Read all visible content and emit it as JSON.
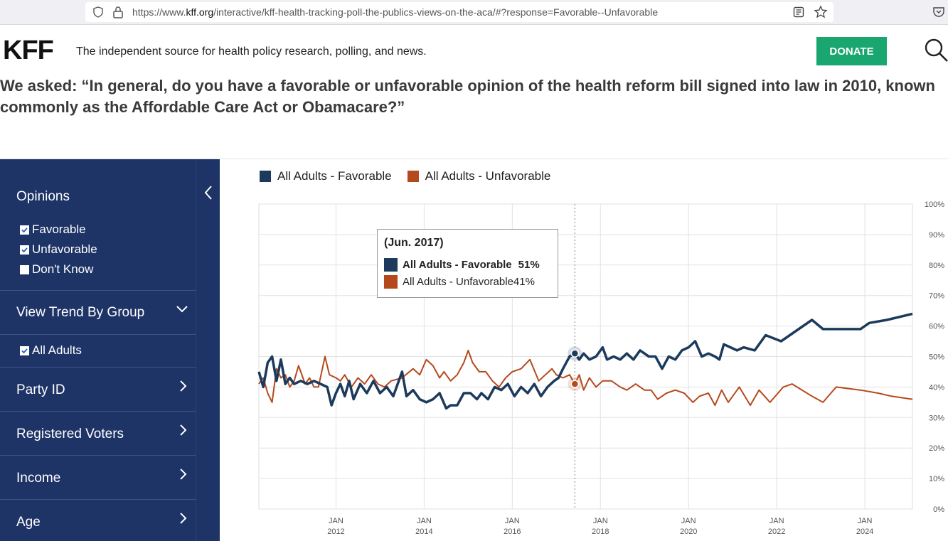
{
  "browser": {
    "url_prefix": "https://www.",
    "url_domain": "kff.org",
    "url_path": "/interactive/kff-health-tracking-poll-the-publics-views-on-the-aca/#?response=Favorable--Unfavorable"
  },
  "header": {
    "logo": "KFF",
    "tagline": "The independent source for health policy research, polling, and news.",
    "donate_label": "DONATE"
  },
  "question": "We asked: “In general, do you have a favorable or unfavorable opinion of the health reform bill signed into law in 2010, known commonly as the Affordable Care Act or Obamacare?”",
  "sidebar": {
    "opinions_title": "Opinions",
    "opinions": [
      {
        "label": "Favorable",
        "checked": true
      },
      {
        "label": "Unfavorable",
        "checked": true
      },
      {
        "label": "Don't Know",
        "checked": false
      }
    ],
    "view_trend_title": "View Trend By Group",
    "groups": [
      {
        "label": "All Adults",
        "checked": true
      }
    ],
    "sections": [
      "Party ID",
      "Registered Voters",
      "Income",
      "Age"
    ]
  },
  "colors": {
    "favorable": "#1b3a5c",
    "unfavorable": "#b5491e",
    "sidebar": "#1e3366",
    "donate": "#1aa66f"
  },
  "tooltip": {
    "date": "(Jun. 2017)",
    "fav_label": "All Adults - Favorable",
    "fav_value": "51%",
    "unfav_label": "All Adults - Unfavorable",
    "unfav_value": "41%"
  },
  "chart_data": {
    "type": "line",
    "legend": [
      "All Adults - Favorable",
      "All Adults - Unfavorable"
    ],
    "ylim": [
      0,
      100
    ],
    "y_ticks": [
      "100%",
      "90%",
      "80%",
      "70%",
      "60%",
      "50%",
      "40%",
      "30%",
      "20%",
      "10%",
      "0%"
    ],
    "x_ticks": [
      {
        "month": "JAN",
        "year": "2012",
        "x": 2012.0
      },
      {
        "month": "JAN",
        "year": "2014",
        "x": 2014.0
      },
      {
        "month": "JAN",
        "year": "2016",
        "x": 2016.0
      },
      {
        "month": "JAN",
        "year": "2018",
        "x": 2018.0
      },
      {
        "month": "JAN",
        "year": "2020",
        "x": 2020.0
      },
      {
        "month": "JAN",
        "year": "2022",
        "x": 2022.0
      },
      {
        "month": "JAN",
        "year": "2024",
        "x": 2024.0
      }
    ],
    "xlim": [
      2010.25,
      2025.08
    ],
    "highlight_x": 2017.42,
    "series": [
      {
        "name": "All Adults - Favorable",
        "points": [
          [
            2010.25,
            45
          ],
          [
            2010.35,
            40
          ],
          [
            2010.45,
            48
          ],
          [
            2010.55,
            50
          ],
          [
            2010.65,
            42
          ],
          [
            2010.75,
            49
          ],
          [
            2010.85,
            41
          ],
          [
            2010.95,
            43
          ],
          [
            2011.05,
            41
          ],
          [
            2011.2,
            42
          ],
          [
            2011.35,
            41
          ],
          [
            2011.5,
            42
          ],
          [
            2011.65,
            41
          ],
          [
            2011.8,
            40
          ],
          [
            2011.9,
            34
          ],
          [
            2012.0,
            38
          ],
          [
            2012.1,
            41
          ],
          [
            2012.2,
            37
          ],
          [
            2012.3,
            42
          ],
          [
            2012.4,
            36
          ],
          [
            2012.55,
            41
          ],
          [
            2012.7,
            38
          ],
          [
            2012.85,
            42
          ],
          [
            2013.0,
            38
          ],
          [
            2013.15,
            40
          ],
          [
            2013.3,
            37
          ],
          [
            2013.5,
            45
          ],
          [
            2013.6,
            37
          ],
          [
            2013.75,
            39
          ],
          [
            2013.9,
            36
          ],
          [
            2014.05,
            35
          ],
          [
            2014.2,
            36
          ],
          [
            2014.35,
            38
          ],
          [
            2014.5,
            33
          ],
          [
            2014.6,
            34
          ],
          [
            2014.75,
            34
          ],
          [
            2014.9,
            38
          ],
          [
            2015.05,
            38
          ],
          [
            2015.2,
            36
          ],
          [
            2015.3,
            38
          ],
          [
            2015.45,
            36
          ],
          [
            2015.6,
            40
          ],
          [
            2015.75,
            39
          ],
          [
            2015.9,
            41
          ],
          [
            2016.05,
            37
          ],
          [
            2016.2,
            40
          ],
          [
            2016.35,
            38
          ],
          [
            2016.5,
            41
          ],
          [
            2016.65,
            37
          ],
          [
            2016.8,
            40
          ],
          [
            2016.95,
            42
          ],
          [
            2017.05,
            43
          ],
          [
            2017.15,
            46
          ],
          [
            2017.3,
            50
          ],
          [
            2017.42,
            51
          ],
          [
            2017.52,
            49
          ],
          [
            2017.62,
            51
          ],
          [
            2017.75,
            49
          ],
          [
            2017.9,
            50
          ],
          [
            2018.05,
            53
          ],
          [
            2018.15,
            49
          ],
          [
            2018.3,
            50
          ],
          [
            2018.45,
            49
          ],
          [
            2018.6,
            51
          ],
          [
            2018.75,
            49
          ],
          [
            2018.9,
            52
          ],
          [
            2019.1,
            50
          ],
          [
            2019.25,
            50
          ],
          [
            2019.4,
            46
          ],
          [
            2019.55,
            50
          ],
          [
            2019.7,
            49
          ],
          [
            2019.85,
            52
          ],
          [
            2020.0,
            53
          ],
          [
            2020.15,
            55
          ],
          [
            2020.3,
            50
          ],
          [
            2020.45,
            51
          ],
          [
            2020.6,
            50
          ],
          [
            2020.7,
            49
          ],
          [
            2020.8,
            54
          ],
          [
            2020.95,
            53
          ],
          [
            2021.1,
            52
          ],
          [
            2021.25,
            53
          ],
          [
            2021.5,
            52
          ],
          [
            2021.75,
            57
          ],
          [
            2022.1,
            55
          ],
          [
            2022.8,
            62
          ],
          [
            2023.05,
            59
          ],
          [
            2023.5,
            59
          ],
          [
            2023.9,
            59
          ],
          [
            2024.1,
            61
          ],
          [
            2024.5,
            62
          ],
          [
            2025.08,
            64
          ]
        ]
      },
      {
        "name": "All Adults - Unfavorable",
        "points": [
          [
            2010.25,
            41
          ],
          [
            2010.35,
            43
          ],
          [
            2010.45,
            38
          ],
          [
            2010.55,
            35
          ],
          [
            2010.65,
            46
          ],
          [
            2010.75,
            43
          ],
          [
            2010.85,
            44
          ],
          [
            2010.95,
            40
          ],
          [
            2011.05,
            42
          ],
          [
            2011.15,
            47
          ],
          [
            2011.3,
            41
          ],
          [
            2011.4,
            43
          ],
          [
            2011.5,
            40
          ],
          [
            2011.6,
            40
          ],
          [
            2011.75,
            50
          ],
          [
            2011.85,
            44
          ],
          [
            2012.0,
            43
          ],
          [
            2012.1,
            42
          ],
          [
            2012.2,
            44
          ],
          [
            2012.35,
            40
          ],
          [
            2012.5,
            43
          ],
          [
            2012.65,
            41
          ],
          [
            2012.8,
            44
          ],
          [
            2012.95,
            41
          ],
          [
            2013.1,
            40
          ],
          [
            2013.25,
            42
          ],
          [
            2013.5,
            43
          ],
          [
            2013.75,
            46
          ],
          [
            2013.9,
            44
          ],
          [
            2014.05,
            49
          ],
          [
            2014.2,
            47
          ],
          [
            2014.35,
            43
          ],
          [
            2014.45,
            45
          ],
          [
            2014.6,
            42
          ],
          [
            2014.75,
            44
          ],
          [
            2014.9,
            48
          ],
          [
            2015.0,
            52
          ],
          [
            2015.1,
            48
          ],
          [
            2015.25,
            45
          ],
          [
            2015.4,
            45
          ],
          [
            2015.55,
            42
          ],
          [
            2015.7,
            40
          ],
          [
            2015.85,
            43
          ],
          [
            2016.0,
            45
          ],
          [
            2016.2,
            46
          ],
          [
            2016.4,
            49
          ],
          [
            2016.6,
            42
          ],
          [
            2016.75,
            44
          ],
          [
            2016.9,
            46
          ],
          [
            2017.0,
            44
          ],
          [
            2017.15,
            43
          ],
          [
            2017.3,
            44
          ],
          [
            2017.42,
            41
          ],
          [
            2017.52,
            44
          ],
          [
            2017.62,
            39
          ],
          [
            2017.75,
            43
          ],
          [
            2017.9,
            40
          ],
          [
            2018.05,
            42
          ],
          [
            2018.25,
            42
          ],
          [
            2018.45,
            40
          ],
          [
            2018.6,
            39
          ],
          [
            2018.8,
            41
          ],
          [
            2019.0,
            39
          ],
          [
            2019.15,
            39
          ],
          [
            2019.3,
            36
          ],
          [
            2019.5,
            38
          ],
          [
            2019.7,
            39
          ],
          [
            2019.9,
            38
          ],
          [
            2020.1,
            35
          ],
          [
            2020.25,
            37
          ],
          [
            2020.45,
            38
          ],
          [
            2020.6,
            34
          ],
          [
            2020.75,
            39
          ],
          [
            2020.9,
            35
          ],
          [
            2021.15,
            40
          ],
          [
            2021.4,
            34
          ],
          [
            2021.6,
            39
          ],
          [
            2021.85,
            35
          ],
          [
            2022.15,
            40
          ],
          [
            2022.35,
            41
          ],
          [
            2022.8,
            37
          ],
          [
            2023.05,
            35
          ],
          [
            2023.35,
            40
          ],
          [
            2023.9,
            39
          ],
          [
            2024.3,
            38
          ],
          [
            2024.6,
            37
          ],
          [
            2025.08,
            36
          ]
        ]
      }
    ]
  }
}
